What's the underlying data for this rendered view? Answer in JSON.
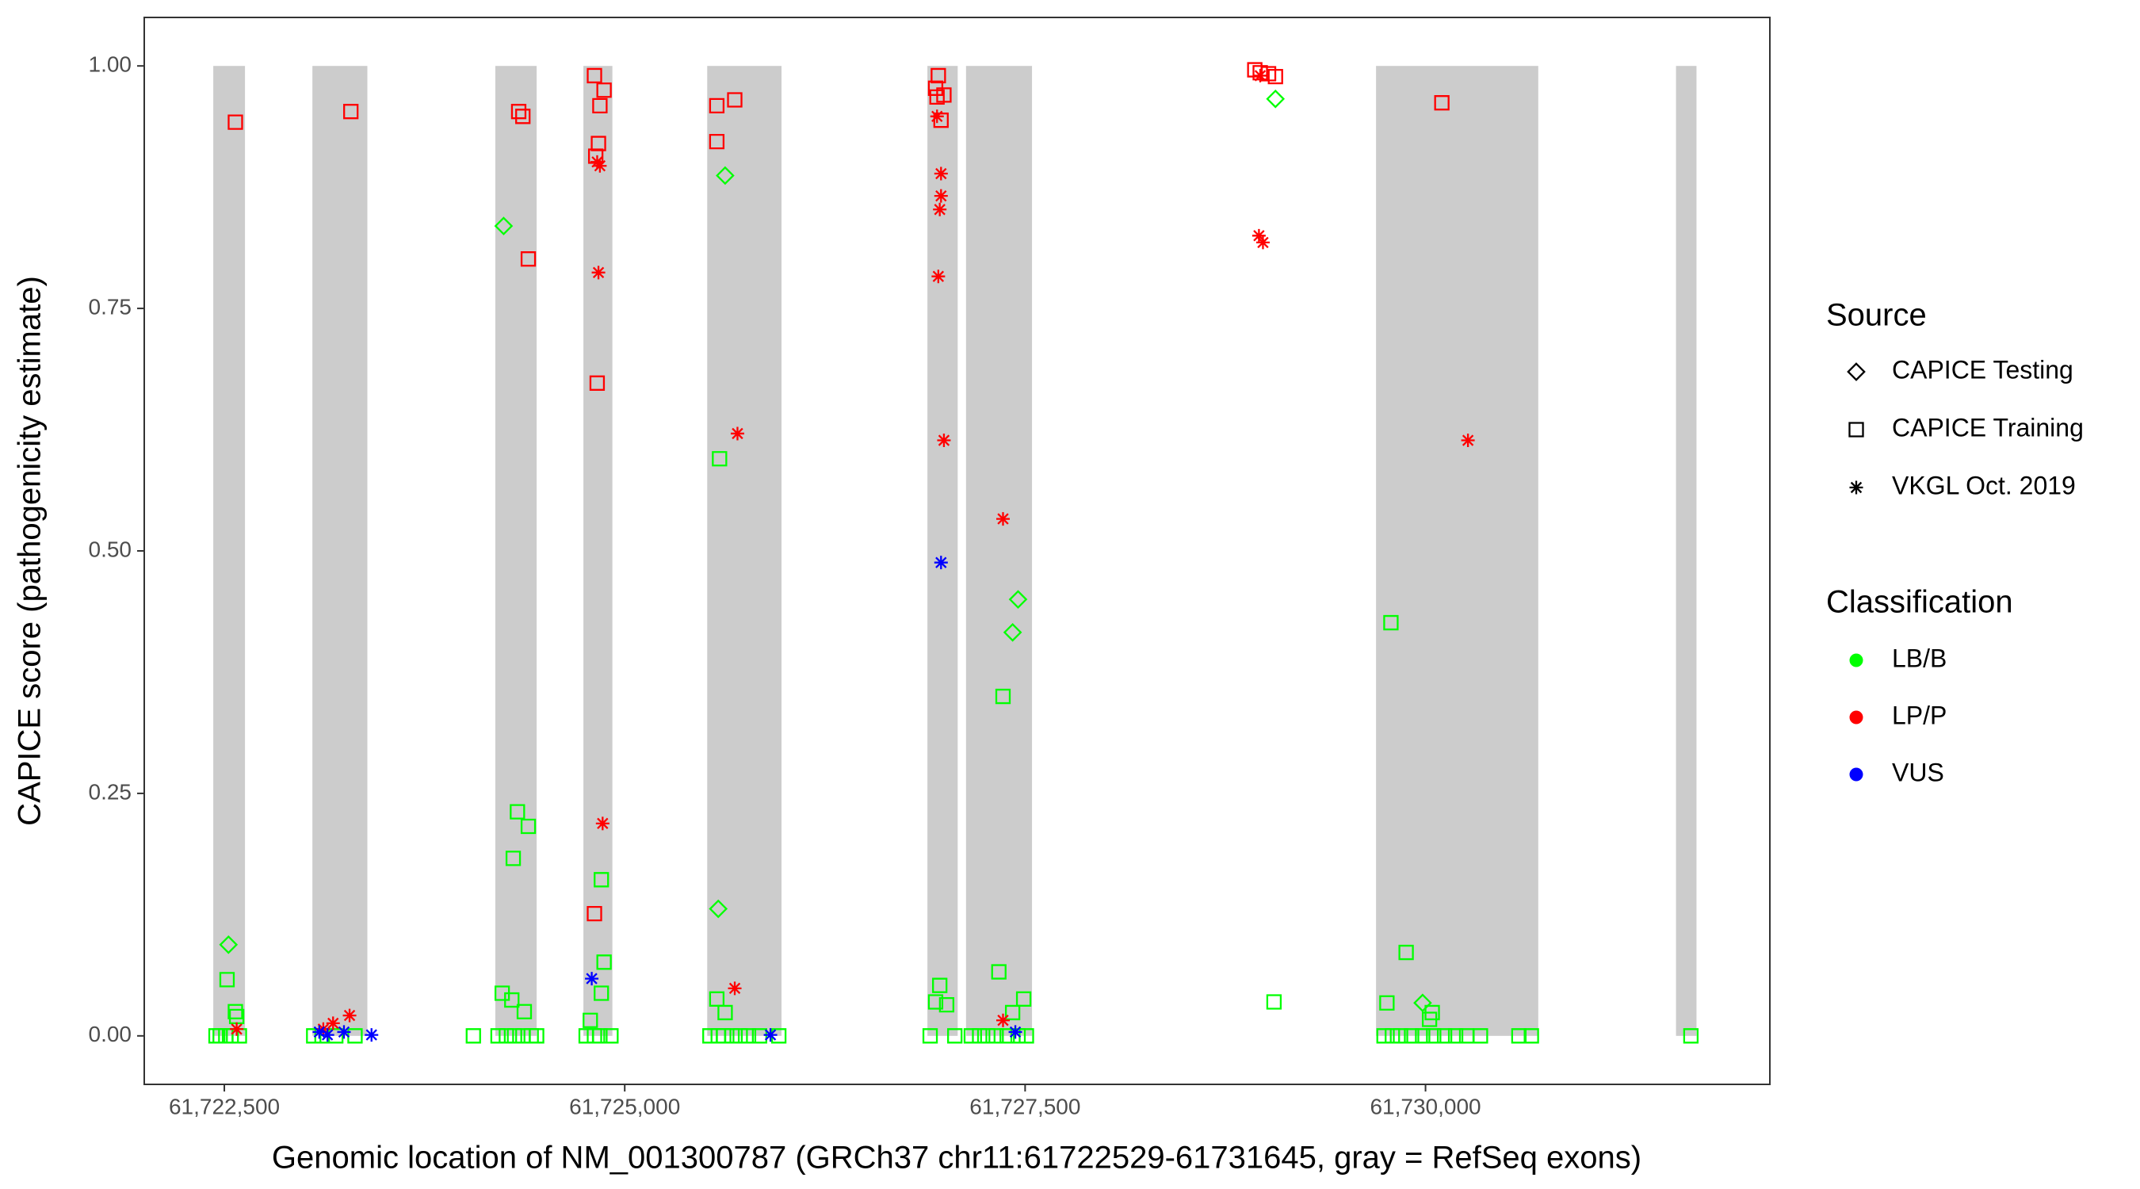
{
  "chart_data": {
    "type": "scatter",
    "x_label": "Genomic location of NM_001300787 (GRCh37 chr11:61722529-61731645, gray = RefSeq exons)",
    "y_label": "CAPICE score (pathogenicity estimate)",
    "xlim": [
      61722000,
      61732150
    ],
    "ylim": [
      -0.05,
      1.05
    ],
    "xticks": [
      {
        "value": 61722500,
        "label": "61,722,500"
      },
      {
        "value": 61725000,
        "label": "61,725,000"
      },
      {
        "value": 61727500,
        "label": "61,727,500"
      },
      {
        "value": 61730000,
        "label": "61,730,000"
      }
    ],
    "yticks": [
      {
        "value": 0,
        "label": "0.00"
      },
      {
        "value": 0.25,
        "label": "0.25"
      },
      {
        "value": 0.5,
        "label": "0.50"
      },
      {
        "value": 0.75,
        "label": "0.75"
      },
      {
        "value": 1,
        "label": "1.00"
      }
    ],
    "grid": false,
    "exon_color": "#cccccc",
    "exons": [
      [
        61722431,
        61722629
      ],
      [
        61723050,
        61723393
      ],
      [
        61724192,
        61724450
      ],
      [
        61724742,
        61724923
      ],
      [
        61725515,
        61725979
      ],
      [
        61726890,
        61727079
      ],
      [
        61727131,
        61727543
      ],
      [
        61729691,
        61730704
      ],
      [
        61731564,
        61731692
      ]
    ],
    "shape_legend": {
      "title": "Source",
      "items": [
        {
          "name": "CAPICE Testing",
          "shape": "diamond"
        },
        {
          "name": "CAPICE Training",
          "shape": "square"
        },
        {
          "name": "VKGL Oct. 2019",
          "shape": "asterisk"
        }
      ]
    },
    "color_legend": {
      "title": "Classification",
      "items": [
        {
          "name": "LB/B",
          "color": "#00ff00"
        },
        {
          "name": "LP/P",
          "color": "#ff0000"
        },
        {
          "name": "VUS",
          "color": "#0000ff"
        }
      ]
    },
    "series": [
      {
        "source": "CAPICE Training",
        "classification": "LB/B",
        "x": [
          61722517,
          61722569,
          61722577,
          61724330,
          61724398,
          61724304,
          61724235,
          61724295,
          61724373,
          61724854,
          61724871,
          61724854,
          61724785,
          61725592,
          61725575,
          61725627,
          61726967,
          61726941,
          61727010,
          61727336,
          61727362,
          61727422,
          61727491,
          61729054,
          61729784,
          61729879,
          61729759,
          61730042,
          61730025,
          61722448,
          61722474,
          61722509,
          61722543,
          61722594,
          61723058,
          61723110,
          61723196,
          61723316,
          61724055,
          61724209,
          61724261,
          61724312,
          61724364,
          61724416,
          61724450,
          61724759,
          61724811,
          61724845,
          61724914,
          61725532,
          61725584,
          61725618,
          61725670,
          61725721,
          61725773,
          61725842,
          61725962,
          61726907,
          61727061,
          61727164,
          61727216,
          61727267,
          61727319,
          61727388,
          61727456,
          61727508,
          61729741,
          61729793,
          61729844,
          61729913,
          61729982,
          61730051,
          61730119,
          61730188,
          61730257,
          61730343,
          61730583,
          61730661,
          61731657
        ],
        "y": [
          0.058,
          0.025,
          0.02,
          0.231,
          0.216,
          0.183,
          0.044,
          0.037,
          0.025,
          0.161,
          0.076,
          0.044,
          0.016,
          0.595,
          0.038,
          0.024,
          0.052,
          0.035,
          0.032,
          0.066,
          0.35,
          0.024,
          0.038,
          0.035,
          0.426,
          0.086,
          0.034,
          0.024,
          0.017,
          0,
          0,
          0,
          0,
          0,
          0,
          0,
          0,
          0,
          0,
          0,
          0,
          0,
          0,
          0,
          0,
          0,
          0,
          0,
          0,
          0,
          0,
          0,
          0,
          0,
          0,
          0,
          0,
          0,
          0,
          0,
          0,
          0,
          0,
          0,
          0,
          0,
          0,
          0,
          0,
          0,
          0,
          0,
          0,
          0,
          0,
          0,
          0,
          0,
          0
        ]
      },
      {
        "source": "CAPICE Testing",
        "classification": "LB/B",
        "x": [
          61722526,
          61724244,
          61725627,
          61725584,
          61729063,
          61727456,
          61727422,
          61729982
        ],
        "y": [
          0.094,
          0.835,
          0.887,
          0.131,
          0.966,
          0.45,
          0.416,
          0.034
        ]
      },
      {
        "source": "CAPICE Training",
        "classification": "LP/P",
        "x": [
          61722569,
          61723290,
          61724338,
          61724364,
          61724398,
          61724811,
          61724845,
          61724836,
          61724819,
          61724871,
          61724828,
          61724811,
          61725575,
          61725687,
          61725575,
          61726958,
          61726941,
          61726950,
          61726993,
          61726975,
          61728934,
          61728968,
          61729020,
          61729063,
          61730102
        ],
        "y": [
          0.942,
          0.953,
          0.953,
          0.948,
          0.801,
          0.99,
          0.959,
          0.92,
          0.907,
          0.975,
          0.673,
          0.126,
          0.959,
          0.965,
          0.922,
          0.99,
          0.977,
          0.968,
          0.97,
          0.944,
          0.996,
          0.993,
          0.992,
          0.989,
          0.962
        ]
      },
      {
        "source": "VKGL Oct. 2019",
        "classification": "LP/P",
        "x": [
          61722577,
          61723118,
          61723179,
          61723282,
          61724828,
          61724845,
          61724836,
          61724862,
          61725704,
          61725687,
          61726950,
          61726975,
          61726975,
          61726967,
          61726958,
          61726993,
          61727362,
          61727362,
          61728960,
          61728985,
          61728968,
          61730265
        ],
        "y": [
          0.007,
          0.007,
          0.013,
          0.021,
          0.901,
          0.897,
          0.787,
          0.219,
          0.621,
          0.049,
          0.948,
          0.889,
          0.866,
          0.852,
          0.783,
          0.614,
          0.533,
          0.016,
          0.825,
          0.818,
          0.99,
          0.614
        ]
      },
      {
        "source": "VKGL Oct. 2019",
        "classification": "VUS",
        "x": [
          61723093,
          61723144,
          61723247,
          61723419,
          61724794,
          61725910,
          61726975,
          61727439
        ],
        "y": [
          0.004,
          0.001,
          0.004,
          0.001,
          0.059,
          0.001,
          0.488,
          0.004
        ]
      }
    ]
  }
}
